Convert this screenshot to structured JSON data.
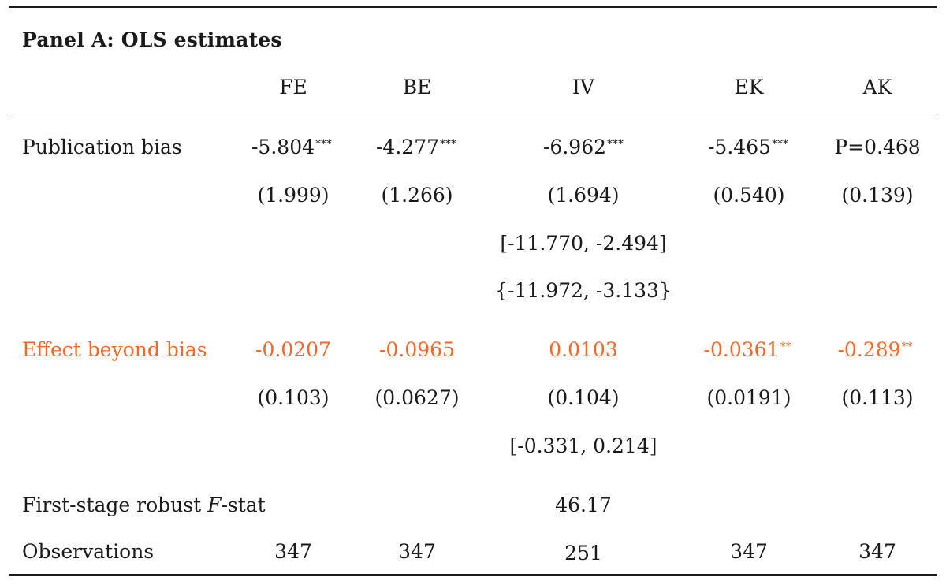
{
  "panel_title": "Panel A: OLS estimates",
  "columns": [
    "FE",
    "BE",
    "IV",
    "EK",
    "AK"
  ],
  "rows": {
    "publication_bias": {
      "label": "Publication bias",
      "estimates": [
        "-5.804",
        "-4.277",
        "-6.962",
        "-5.465",
        "P=0.468"
      ],
      "stars": [
        "***",
        "***",
        "***",
        "***",
        ""
      ],
      "se": [
        "(1.999)",
        "(1.266)",
        "(1.694)",
        "(0.540)",
        "(0.139)"
      ],
      "iv_ci_brackets": "[-11.770, -2.494]",
      "iv_ci_braces": "{-11.972, -3.133}"
    },
    "effect_beyond_bias": {
      "label": "Effect beyond bias",
      "estimates": [
        "-0.0207",
        "-0.0965",
        "0.0103",
        "-0.0361",
        "-0.289"
      ],
      "stars": [
        "",
        "",
        "",
        "**",
        "**"
      ],
      "se": [
        "(0.103)",
        "(0.0627)",
        "(0.104)",
        "(0.0191)",
        "(0.113)"
      ],
      "iv_ci_brackets": "[-0.331, 0.214]"
    },
    "first_stage": {
      "label_prefix": "First-stage robust ",
      "label_italic": "F",
      "label_suffix": "-stat",
      "iv_value": "46.17"
    },
    "observations": {
      "label": "Observations",
      "values": [
        "347",
        "347",
        "251",
        "347",
        "347"
      ]
    }
  },
  "colors": {
    "highlight": "#ef6a2a",
    "text": "#1a1a1a"
  }
}
